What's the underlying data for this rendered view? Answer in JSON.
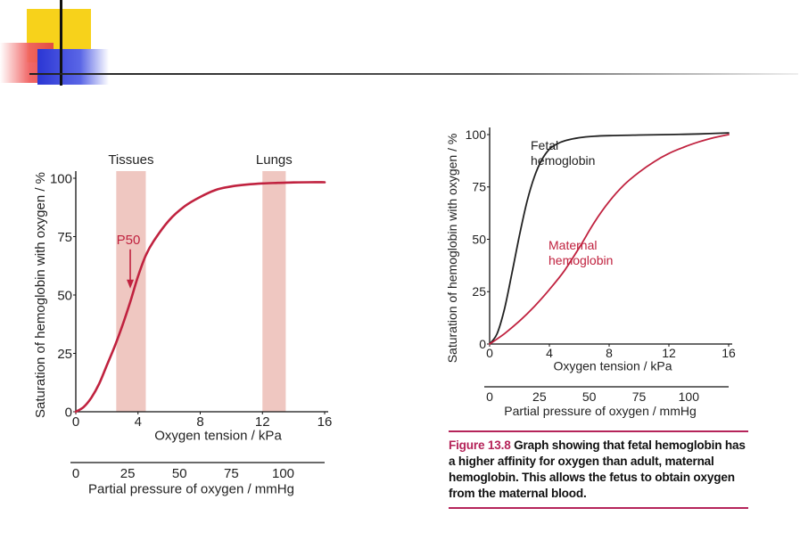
{
  "colors": {
    "accent_yellow": "#f7d21b",
    "accent_red": "#f06060",
    "accent_blue": "#2b36d4",
    "maternal_curve": "#c0223f",
    "fetal_curve": "#222222",
    "band_fill": "#efc7c1",
    "caption_accent": "#b5245a"
  },
  "caption": {
    "figure_label": "Figure 13.8",
    "text": " Graph showing that fetal hemoglobin has a higher affinity for oxygen than adult, maternal hemoglobin. This allows the fetus to obtain oxygen from the maternal blood."
  },
  "chart_data": [
    {
      "type": "line",
      "ylabel": "Saturation of hemoglobin with oxygen / %",
      "xlabel": "Oxygen tension / kPa",
      "xlabel2": "Partial pressure of oxygen / mmHg",
      "xlim": [
        0,
        16
      ],
      "ylim": [
        0,
        100
      ],
      "xticks": [
        "0",
        "4",
        "8",
        "12",
        "16"
      ],
      "yticks": [
        "0",
        "25",
        "50",
        "75",
        "100"
      ],
      "x2ticks": [
        "0",
        "25",
        "50",
        "75",
        "100"
      ],
      "bands": [
        {
          "label": "Tissues",
          "x0": 2.6,
          "x1": 4.5
        },
        {
          "label": "Lungs",
          "x0": 12.0,
          "x1": 13.5
        }
      ],
      "annotation": {
        "label": "P50",
        "x": 3.5,
        "y": 52
      },
      "series": [
        {
          "x": [
            0,
            0.5,
            1,
            1.5,
            2,
            2.5,
            3,
            3.5,
            4,
            4.5,
            5,
            6,
            7,
            8,
            9,
            10,
            11,
            12,
            13,
            14,
            15,
            16
          ],
          "y": [
            0,
            2,
            6,
            12,
            20,
            28,
            37,
            47,
            58,
            67,
            73,
            82,
            88,
            92,
            95,
            96.5,
            97.3,
            97.8,
            98,
            98.2,
            98.3,
            98.3
          ]
        }
      ]
    },
    {
      "type": "line",
      "ylabel": "Saturation of hemoglobin with oxygen / %",
      "xlabel": "Oxygen tension / kPa",
      "xlabel2": "Partial pressure of oxygen / mmHg",
      "xlim": [
        0,
        16
      ],
      "ylim": [
        0,
        100
      ],
      "xticks": [
        "0",
        "4",
        "8",
        "12",
        "16"
      ],
      "yticks": [
        "0",
        "25",
        "50",
        "75",
        "100"
      ],
      "x2ticks": [
        "0",
        "25",
        "50",
        "75",
        "100"
      ],
      "series": [
        {
          "name": "Fetal hemoglobin",
          "label_lines": [
            "Fetal",
            "hemoglobin"
          ],
          "x": [
            0,
            0.5,
            1,
            1.5,
            2,
            2.5,
            3,
            3.5,
            4,
            4.5,
            5,
            6,
            7,
            8,
            10,
            12,
            14,
            16
          ],
          "y": [
            0,
            5,
            17,
            34,
            52,
            68,
            80,
            88,
            93,
            95.5,
            97,
            98.5,
            99.2,
            99.5,
            99.8,
            100,
            100.3,
            100.8
          ]
        },
        {
          "name": "Maternal hemoglobin",
          "label_lines": [
            "Maternal",
            "hemoglobin"
          ],
          "x": [
            0,
            1,
            2,
            3,
            4,
            5,
            6,
            7,
            8,
            9,
            10,
            11,
            12,
            13,
            14,
            15,
            16
          ],
          "y": [
            0,
            5,
            11,
            18,
            26,
            35,
            46,
            58,
            68,
            76,
            82,
            87,
            91,
            94,
            96.5,
            98.5,
            100
          ]
        }
      ]
    }
  ]
}
